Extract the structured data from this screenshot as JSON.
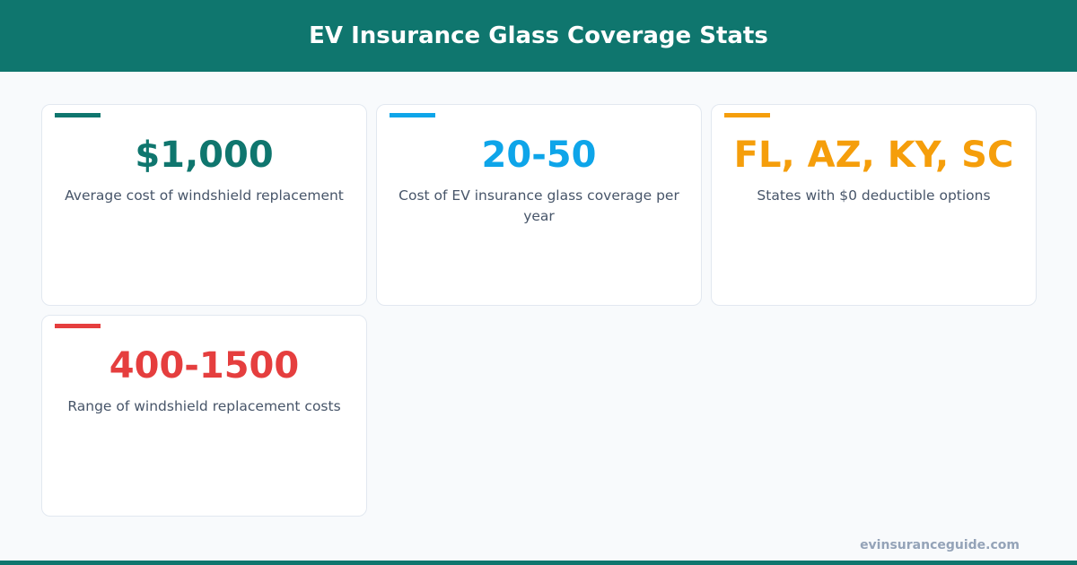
{
  "title": "EV Insurance Glass Coverage Stats",
  "stats": [
    {
      "value": "$1,000",
      "label": "Average cost of windshield replacement",
      "color": "#0f766e"
    },
    {
      "value": "20-50",
      "label": "Cost of EV insurance glass coverage per year",
      "color": "#0ea5e9"
    },
    {
      "value": "FL, AZ, KY, SC",
      "label": "States with $0 deductible options",
      "color": "#f59e0b"
    },
    {
      "value": "400-1500",
      "label": "Range of windshield replacement costs",
      "color": "#e53e3e"
    }
  ],
  "footer": "evinsuranceguide.com"
}
